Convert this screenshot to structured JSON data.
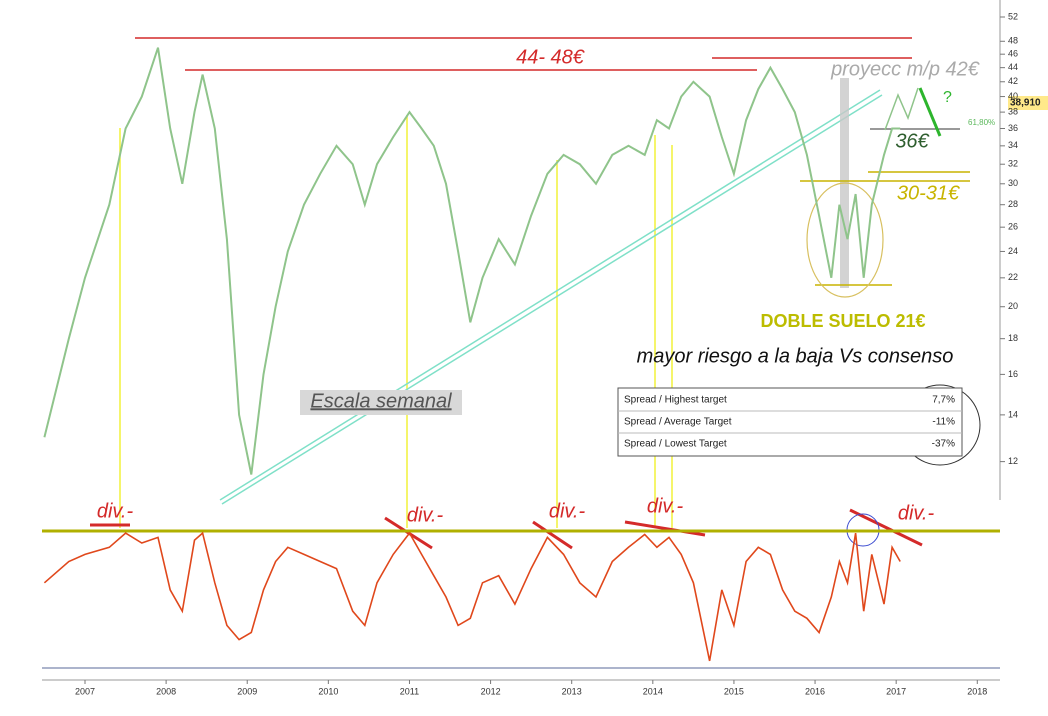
{
  "chart_data": [
    {
      "type": "line",
      "log_scale": true,
      "color": "#8fc48b",
      "xlim": [
        2006.47,
        2018.28
      ],
      "ylim": [
        11,
        55
      ],
      "xticks": [
        2007,
        2008,
        2009,
        2010,
        2011,
        2012,
        2013,
        2014,
        2015,
        2016,
        2017,
        2018
      ],
      "yticks": [
        12,
        14,
        16,
        18,
        20,
        22,
        24,
        26,
        28,
        30,
        32,
        34,
        36,
        38,
        40,
        42,
        44,
        46,
        48,
        52
      ],
      "x": [
        2006.5,
        2006.8,
        2007.0,
        2007.3,
        2007.5,
        2007.7,
        2007.9,
        2008.05,
        2008.2,
        2008.35,
        2008.45,
        2008.6,
        2008.75,
        2008.9,
        2009.05,
        2009.2,
        2009.35,
        2009.5,
        2009.7,
        2009.9,
        2010.1,
        2010.3,
        2010.45,
        2010.6,
        2010.8,
        2011.0,
        2011.15,
        2011.3,
        2011.45,
        2011.6,
        2011.75,
        2011.9,
        2012.1,
        2012.3,
        2012.5,
        2012.7,
        2012.9,
        2013.1,
        2013.3,
        2013.5,
        2013.7,
        2013.9,
        2014.05,
        2014.2,
        2014.35,
        2014.5,
        2014.7,
        2014.85,
        2015.0,
        2015.15,
        2015.3,
        2015.45,
        2015.6,
        2015.75,
        2015.9,
        2016.05,
        2016.2,
        2016.3,
        2016.4,
        2016.5,
        2016.6,
        2016.7,
        2016.85,
        2016.95,
        2017.05
      ],
      "values": [
        13,
        18,
        22,
        28,
        36,
        40,
        47,
        36,
        30,
        38,
        43,
        36,
        25,
        14,
        11.5,
        16,
        20,
        24,
        28,
        31,
        34,
        32,
        28,
        32,
        35,
        38,
        36,
        34,
        30,
        24,
        19,
        22,
        25,
        23,
        27,
        31,
        33,
        32,
        30,
        33,
        34,
        33,
        37,
        36,
        40,
        42,
        40,
        35,
        31,
        37,
        41,
        44,
        41,
        38,
        33,
        27,
        22,
        28,
        25,
        29,
        22,
        28,
        33,
        36,
        36
      ],
      "last_price_label": "38,910",
      "fib_label": "61,80%",
      "annotations": [
        "44- 48€",
        "proyecc m/p 42€",
        "36€",
        "30-31€",
        "DOBLE SUELO 21€",
        "mayor riesgo a la baja Vs consenso",
        "Escala semanal",
        "?"
      ],
      "table": {
        "rows": [
          [
            "Spread / Highest target",
            "7,7%"
          ],
          [
            "Spread / Average Target",
            "-11%"
          ],
          [
            "Spread / Lowest Target",
            "-37%"
          ]
        ]
      }
    },
    {
      "type": "line",
      "color": "#e0481c",
      "ylim": [
        0,
        100
      ],
      "x": [
        2006.5,
        2006.8,
        2007.0,
        2007.3,
        2007.5,
        2007.7,
        2007.9,
        2008.05,
        2008.2,
        2008.35,
        2008.45,
        2008.6,
        2008.75,
        2008.9,
        2009.05,
        2009.2,
        2009.35,
        2009.5,
        2009.7,
        2009.9,
        2010.1,
        2010.3,
        2010.45,
        2010.6,
        2010.8,
        2011.0,
        2011.15,
        2011.3,
        2011.45,
        2011.6,
        2011.75,
        2011.9,
        2012.1,
        2012.3,
        2012.5,
        2012.7,
        2012.9,
        2013.1,
        2013.3,
        2013.5,
        2013.7,
        2013.9,
        2014.05,
        2014.2,
        2014.35,
        2014.5,
        2014.7,
        2014.85,
        2015.0,
        2015.15,
        2015.3,
        2015.45,
        2015.6,
        2015.75,
        2015.9,
        2016.05,
        2016.2,
        2016.3,
        2016.4,
        2016.5,
        2016.6,
        2016.7,
        2016.85,
        2016.95,
        2017.05
      ],
      "values": [
        60,
        75,
        80,
        85,
        95,
        88,
        92,
        55,
        40,
        90,
        95,
        60,
        30,
        20,
        25,
        55,
        75,
        85,
        80,
        75,
        70,
        40,
        30,
        60,
        80,
        95,
        80,
        65,
        50,
        30,
        35,
        60,
        65,
        45,
        70,
        92,
        80,
        60,
        50,
        75,
        85,
        94,
        85,
        92,
        80,
        60,
        5,
        55,
        30,
        75,
        85,
        80,
        55,
        40,
        35,
        25,
        50,
        75,
        60,
        95,
        40,
        80,
        45,
        85,
        75
      ],
      "annotations": [
        "div.-",
        "div.-",
        "div.-",
        "div.-",
        "div.-"
      ]
    }
  ]
}
